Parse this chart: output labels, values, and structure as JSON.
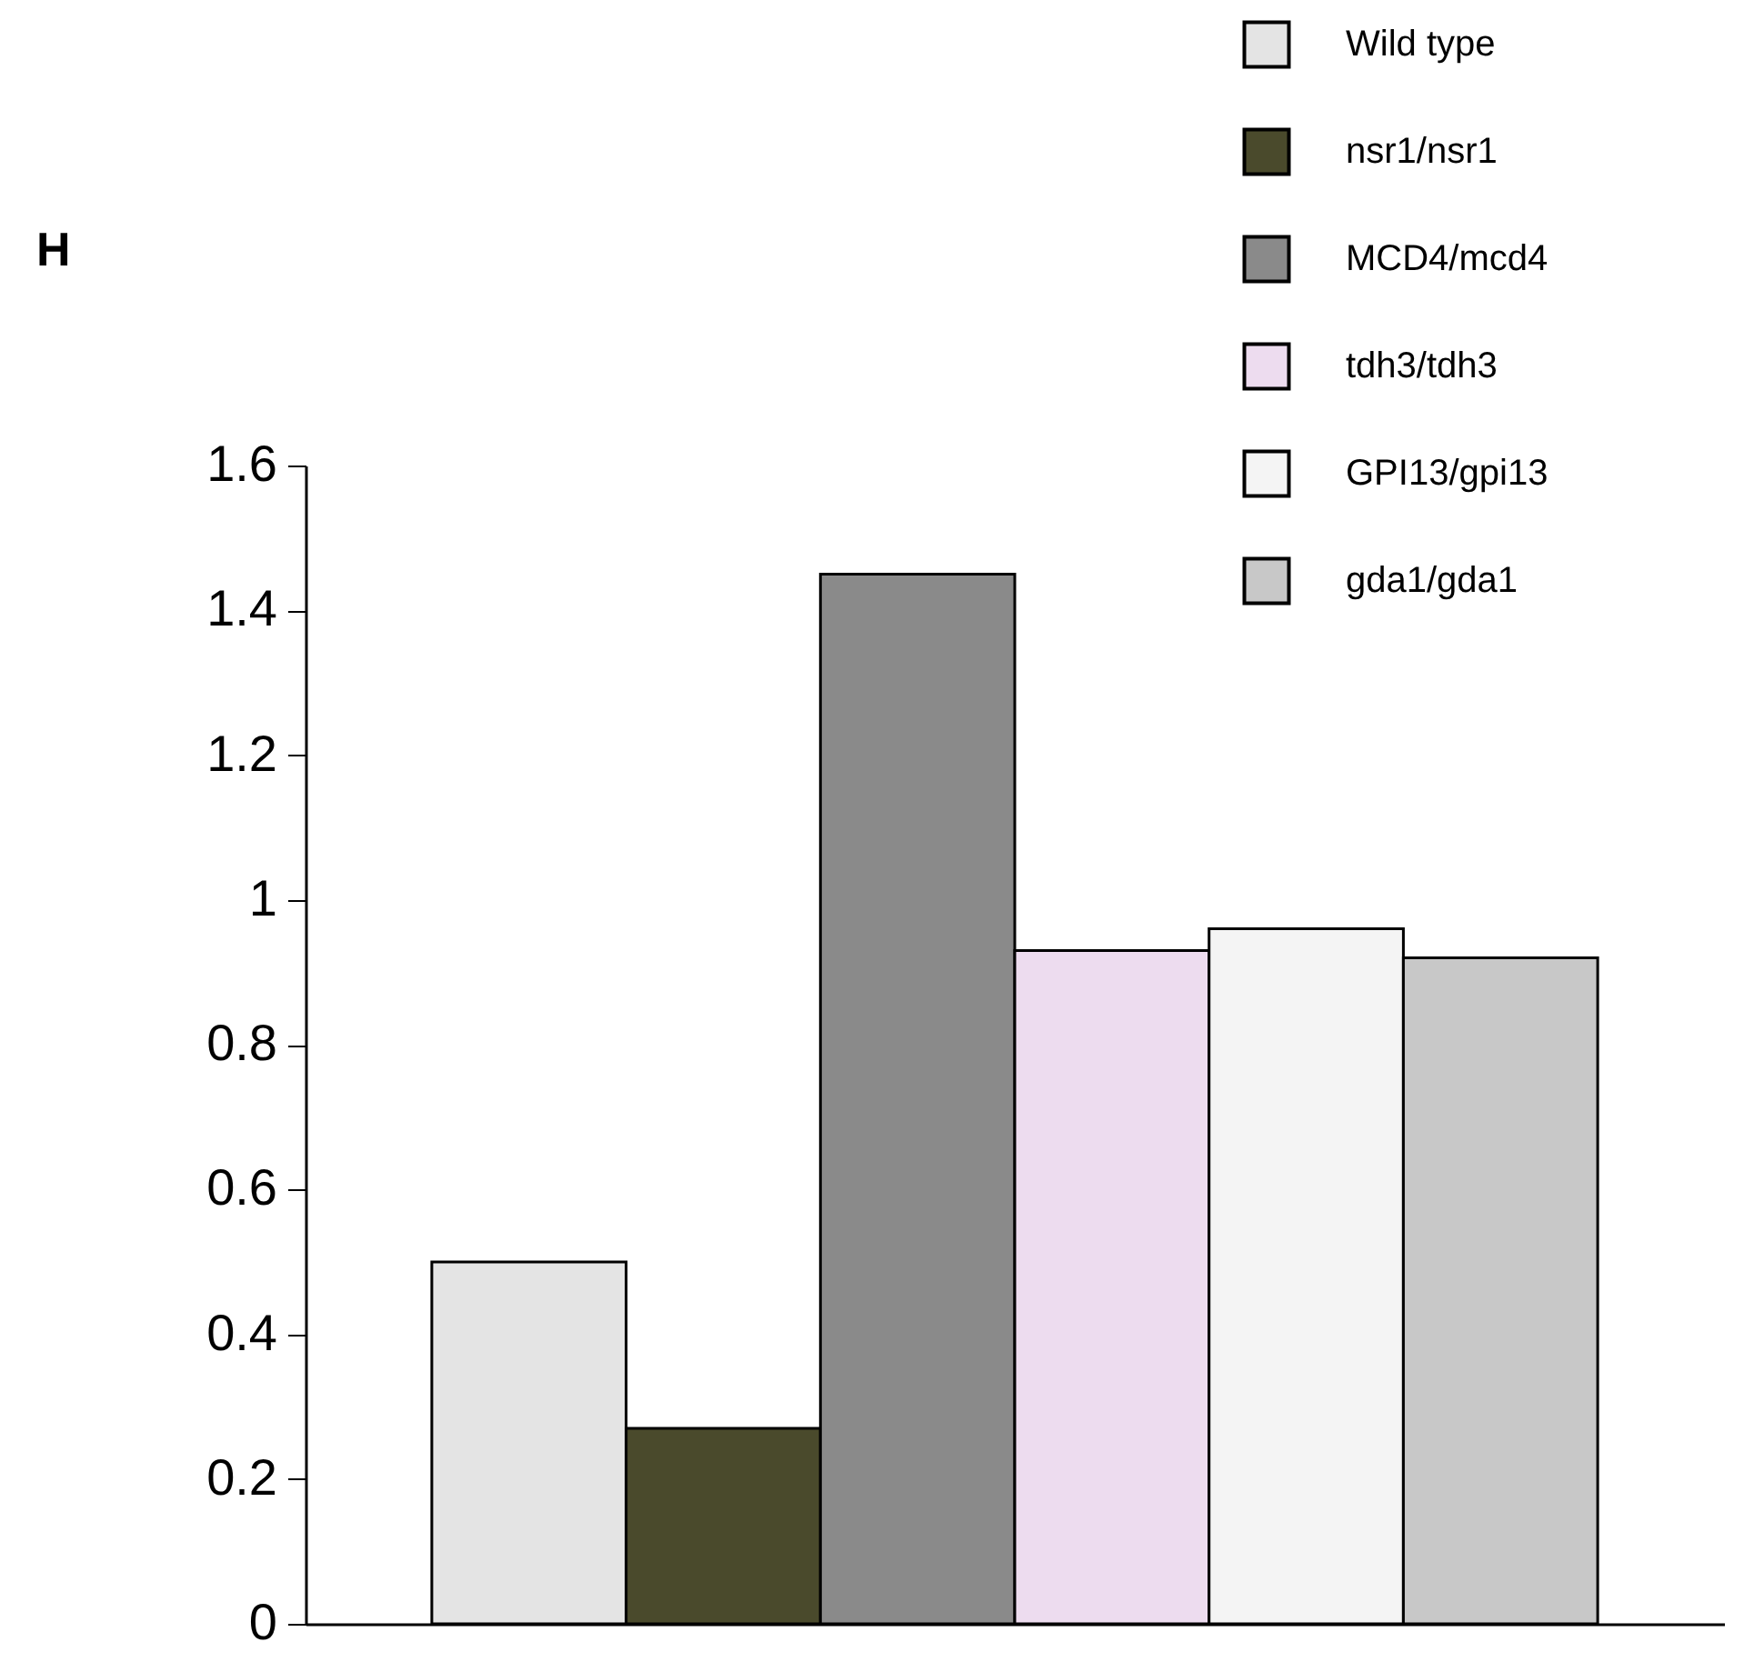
{
  "chart_data": {
    "type": "bar",
    "title": "H",
    "categories": [
      null,
      null,
      null,
      null,
      null,
      null
    ],
    "series": [
      {
        "name": "Wild type",
        "color": "#e4e4e4",
        "values": [
          0.5,
          null,
          null,
          null,
          null,
          null
        ]
      },
      {
        "name": "nsr1/nsr1",
        "color": "#4a4a2c",
        "values": [
          null,
          0.27,
          null,
          null,
          null,
          null
        ]
      },
      {
        "name": "MCD4/mcd4",
        "color": "#8a8a8a",
        "values": [
          null,
          null,
          1.45,
          null,
          null,
          null
        ]
      },
      {
        "name": "tdh3/tdh3",
        "color": "#eddcef",
        "values": [
          null,
          null,
          null,
          0.93,
          null,
          null
        ]
      },
      {
        "name": "GPI13/gpi13",
        "color": "#f4f4f4",
        "values": [
          null,
          null,
          null,
          null,
          0.96,
          null
        ]
      },
      {
        "name": "gda1/gda1",
        "color": "#c8c8c8",
        "values": [
          null,
          null,
          null,
          null,
          null,
          0.92
        ]
      }
    ],
    "ylim": [
      0,
      1.6
    ],
    "yticks": [
      0,
      0.2,
      0.4,
      0.6,
      0.8,
      1,
      1.2,
      1.4,
      1.6
    ],
    "legend": "top right",
    "tick_labels": "y"
  }
}
